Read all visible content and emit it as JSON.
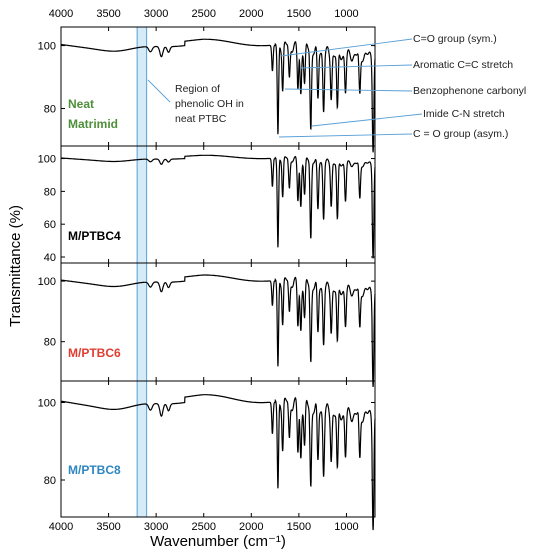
{
  "chart_data": {
    "type": "line",
    "title": "",
    "xlabel": "Wavenumber (cm⁻¹)",
    "ylabel": "Transmittance (%)",
    "xlim": [
      4000,
      700
    ],
    "x_reversed": true,
    "x_ticks": [
      4000,
      3500,
      3000,
      2500,
      2000,
      1500,
      1000
    ],
    "x_tick_labels": [
      "4000",
      "3500",
      "3000",
      "2500",
      "2000",
      "1500",
      "1000"
    ],
    "grid": false,
    "shaded_region": {
      "x_range": [
        3200,
        3100
      ],
      "color": "#d6ebf8",
      "edge_color": "#5aa0d6"
    },
    "panels": [
      {
        "label": "Neat Matrimid",
        "label_color": "#4e8f3a",
        "ylim": [
          70,
          104
        ],
        "y_ticks": [
          80,
          100
        ],
        "y_tick_labels": [
          "80",
          "100"
        ],
        "peaks": [
          {
            "x": 1778,
            "y": 92
          },
          {
            "x": 1720,
            "y": 71
          },
          {
            "x": 1670,
            "y": 87
          },
          {
            "x": 1600,
            "y": 90
          },
          {
            "x": 1510,
            "y": 87
          },
          {
            "x": 1480,
            "y": 86
          },
          {
            "x": 1440,
            "y": 89
          },
          {
            "x": 1375,
            "y": 75
          },
          {
            "x": 1300,
            "y": 84
          },
          {
            "x": 1240,
            "y": 82
          },
          {
            "x": 1160,
            "y": 86
          },
          {
            "x": 1095,
            "y": 81
          },
          {
            "x": 1010,
            "y": 88
          },
          {
            "x": 860,
            "y": 87
          },
          {
            "x": 720,
            "y": 72
          }
        ]
      },
      {
        "label": "M/PTBC4",
        "label_color": "#000000",
        "ylim": [
          40,
          104
        ],
        "y_ticks": [
          40,
          60,
          80,
          100
        ],
        "y_tick_labels": [
          "40",
          "60",
          "80",
          "100"
        ],
        "peaks": [
          {
            "x": 1778,
            "y": 83
          },
          {
            "x": 1720,
            "y": 45
          },
          {
            "x": 1670,
            "y": 78
          },
          {
            "x": 1600,
            "y": 82
          },
          {
            "x": 1510,
            "y": 75
          },
          {
            "x": 1480,
            "y": 72
          },
          {
            "x": 1440,
            "y": 79
          },
          {
            "x": 1375,
            "y": 53
          },
          {
            "x": 1300,
            "y": 70
          },
          {
            "x": 1240,
            "y": 66
          },
          {
            "x": 1160,
            "y": 74
          },
          {
            "x": 1095,
            "y": 64
          },
          {
            "x": 1010,
            "y": 77
          },
          {
            "x": 860,
            "y": 78
          },
          {
            "x": 720,
            "y": 45
          }
        ]
      },
      {
        "label": "M/PTBC6",
        "label_color": "#e03c31",
        "ylim": [
          69,
          104
        ],
        "y_ticks": [
          80,
          100
        ],
        "y_tick_labels": [
          "80",
          "100"
        ],
        "peaks": [
          {
            "x": 1778,
            "y": 92
          },
          {
            "x": 1720,
            "y": 71
          },
          {
            "x": 1670,
            "y": 87
          },
          {
            "x": 1600,
            "y": 90
          },
          {
            "x": 1510,
            "y": 86
          },
          {
            "x": 1480,
            "y": 85
          },
          {
            "x": 1440,
            "y": 89
          },
          {
            "x": 1375,
            "y": 75
          },
          {
            "x": 1300,
            "y": 84
          },
          {
            "x": 1240,
            "y": 82
          },
          {
            "x": 1160,
            "y": 86
          },
          {
            "x": 1095,
            "y": 81
          },
          {
            "x": 1010,
            "y": 88
          },
          {
            "x": 860,
            "y": 87
          },
          {
            "x": 720,
            "y": 71
          }
        ]
      },
      {
        "label": "M/PTBC8",
        "label_color": "#2e86c1",
        "ylim": [
          72,
          104
        ],
        "y_ticks": [
          80,
          100
        ],
        "y_tick_labels": [
          "80",
          "100"
        ],
        "peaks": [
          {
            "x": 1778,
            "y": 92
          },
          {
            "x": 1720,
            "y": 77
          },
          {
            "x": 1670,
            "y": 89
          },
          {
            "x": 1600,
            "y": 91
          },
          {
            "x": 1510,
            "y": 88
          },
          {
            "x": 1480,
            "y": 87
          },
          {
            "x": 1440,
            "y": 90
          },
          {
            "x": 1375,
            "y": 80
          },
          {
            "x": 1300,
            "y": 86
          },
          {
            "x": 1240,
            "y": 84
          },
          {
            "x": 1160,
            "y": 88
          },
          {
            "x": 1095,
            "y": 84
          },
          {
            "x": 1010,
            "y": 89
          },
          {
            "x": 860,
            "y": 88
          },
          {
            "x": 720,
            "y": 73
          }
        ]
      }
    ],
    "annotations": [
      {
        "text": "C=O group (sym.)",
        "x": 1778
      },
      {
        "text": "Aromatic C=C stretch",
        "x": 1600
      },
      {
        "text": "Benzophenone carbonyl",
        "x": 1670
      },
      {
        "text": "Imide C-N stretch",
        "x": 1375
      },
      {
        "text": "C = O group (asym.)",
        "x": 1720
      }
    ],
    "region_annotation": {
      "lines": [
        "Region of",
        "phenolic OH in",
        "neat PTBC"
      ]
    }
  }
}
